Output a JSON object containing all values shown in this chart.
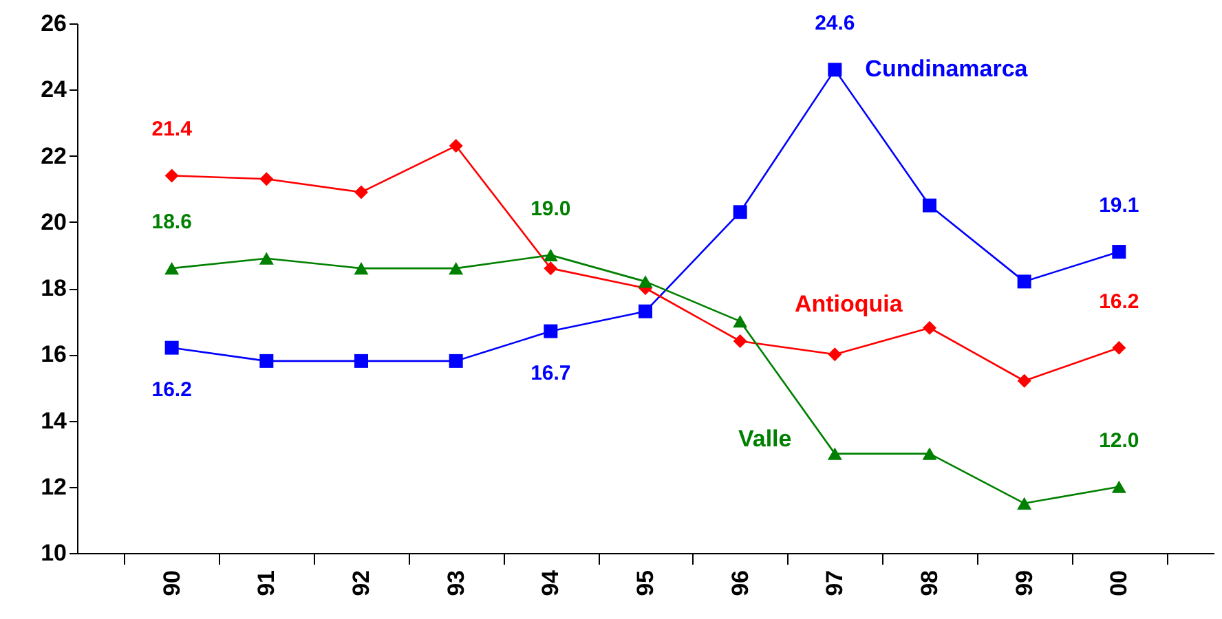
{
  "chart_data": {
    "type": "line",
    "categories": [
      "90",
      "91",
      "92",
      "93",
      "94",
      "95",
      "96",
      "97",
      "98",
      "99",
      "00"
    ],
    "ylim": [
      10,
      26
    ],
    "yticks": [
      10,
      12,
      14,
      16,
      18,
      20,
      22,
      24,
      26
    ],
    "grid": false,
    "legend": false,
    "series": [
      {
        "name": "Cundinamarca",
        "color": "#0000ff",
        "marker": "square",
        "values": [
          16.2,
          15.8,
          15.8,
          15.8,
          16.7,
          17.3,
          20.3,
          24.6,
          20.5,
          18.2,
          19.1
        ],
        "value_labels": [
          "16.2",
          null,
          null,
          null,
          "16.7",
          null,
          null,
          "24.6",
          null,
          null,
          "19.1"
        ]
      },
      {
        "name": "Antioquia",
        "color": "#ff0000",
        "marker": "diamond",
        "values": [
          21.4,
          21.3,
          20.9,
          22.3,
          18.6,
          18.0,
          16.4,
          16.0,
          16.8,
          15.2,
          16.2
        ],
        "value_labels": [
          "21.4",
          null,
          null,
          null,
          null,
          null,
          null,
          null,
          null,
          null,
          "16.2"
        ]
      },
      {
        "name": "Valle",
        "color": "#008000",
        "marker": "triangle",
        "values": [
          18.6,
          18.9,
          18.6,
          18.6,
          19.0,
          18.2,
          17.0,
          13.0,
          13.0,
          11.5,
          12.0
        ],
        "value_labels": [
          "18.6",
          null,
          null,
          null,
          "19.0",
          null,
          null,
          null,
          null,
          null,
          "12.0"
        ]
      }
    ]
  }
}
